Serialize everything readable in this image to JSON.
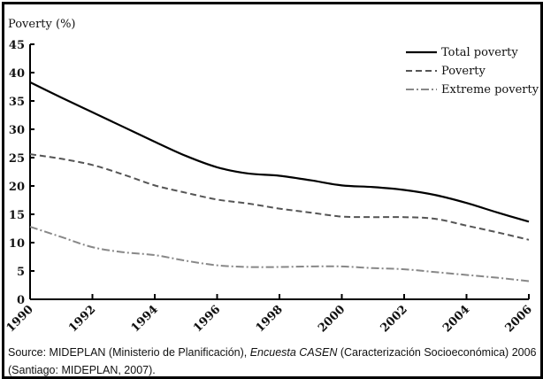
{
  "chart_data": {
    "type": "line",
    "title": "",
    "ylabel": "Poverty (%)",
    "xlabel": "",
    "ylim": [
      0,
      45
    ],
    "xlim": [
      1990,
      2006
    ],
    "yticks": [
      0,
      5,
      10,
      15,
      20,
      25,
      30,
      35,
      40,
      45
    ],
    "xticks": [
      1990,
      1992,
      1994,
      1996,
      1998,
      2000,
      2002,
      2004,
      2006
    ],
    "grid": false,
    "legend_position": "top-right",
    "series": [
      {
        "name": "Total poverty",
        "style": "solid",
        "color": "#000000",
        "x": [
          1990,
          1991,
          1992,
          1993,
          1994,
          1995,
          1996,
          1997,
          1998,
          1999,
          2000,
          2001,
          2002,
          2003,
          2004,
          2005,
          2006
        ],
        "values": [
          38.3,
          35.6,
          33.0,
          30.4,
          27.8,
          25.3,
          23.3,
          22.2,
          21.8,
          21.0,
          20.1,
          19.8,
          19.3,
          18.4,
          17.0,
          15.3,
          13.7
        ]
      },
      {
        "name": "Poverty",
        "style": "dashed",
        "color": "#555555",
        "x": [
          1990,
          1991,
          1992,
          1993,
          1994,
          1995,
          1996,
          1997,
          1998,
          1999,
          2000,
          2001,
          2002,
          2003,
          2004,
          2005,
          2006
        ],
        "values": [
          25.6,
          24.8,
          23.7,
          22.0,
          20.1,
          18.8,
          17.6,
          16.9,
          16.0,
          15.3,
          14.6,
          14.5,
          14.5,
          14.2,
          13.0,
          11.8,
          10.5
        ]
      },
      {
        "name": "Extreme poverty",
        "style": "dash-dot",
        "color": "#888888",
        "x": [
          1990,
          1991,
          1992,
          1993,
          1994,
          1995,
          1996,
          1997,
          1998,
          1999,
          2000,
          2001,
          2002,
          2003,
          2004,
          2005,
          2006
        ],
        "values": [
          12.8,
          11.0,
          9.2,
          8.3,
          7.8,
          6.8,
          6.0,
          5.7,
          5.7,
          5.8,
          5.8,
          5.5,
          5.3,
          4.8,
          4.3,
          3.8,
          3.2
        ]
      }
    ]
  },
  "source": {
    "prefix": "Source: MIDEPLAN (Ministerio de Planificación), ",
    "italic": "Encuesta CASEN",
    "suffix": " (Caracterización Socioeconómica) 2006 (Santiago: MIDEPLAN, 2007)."
  }
}
